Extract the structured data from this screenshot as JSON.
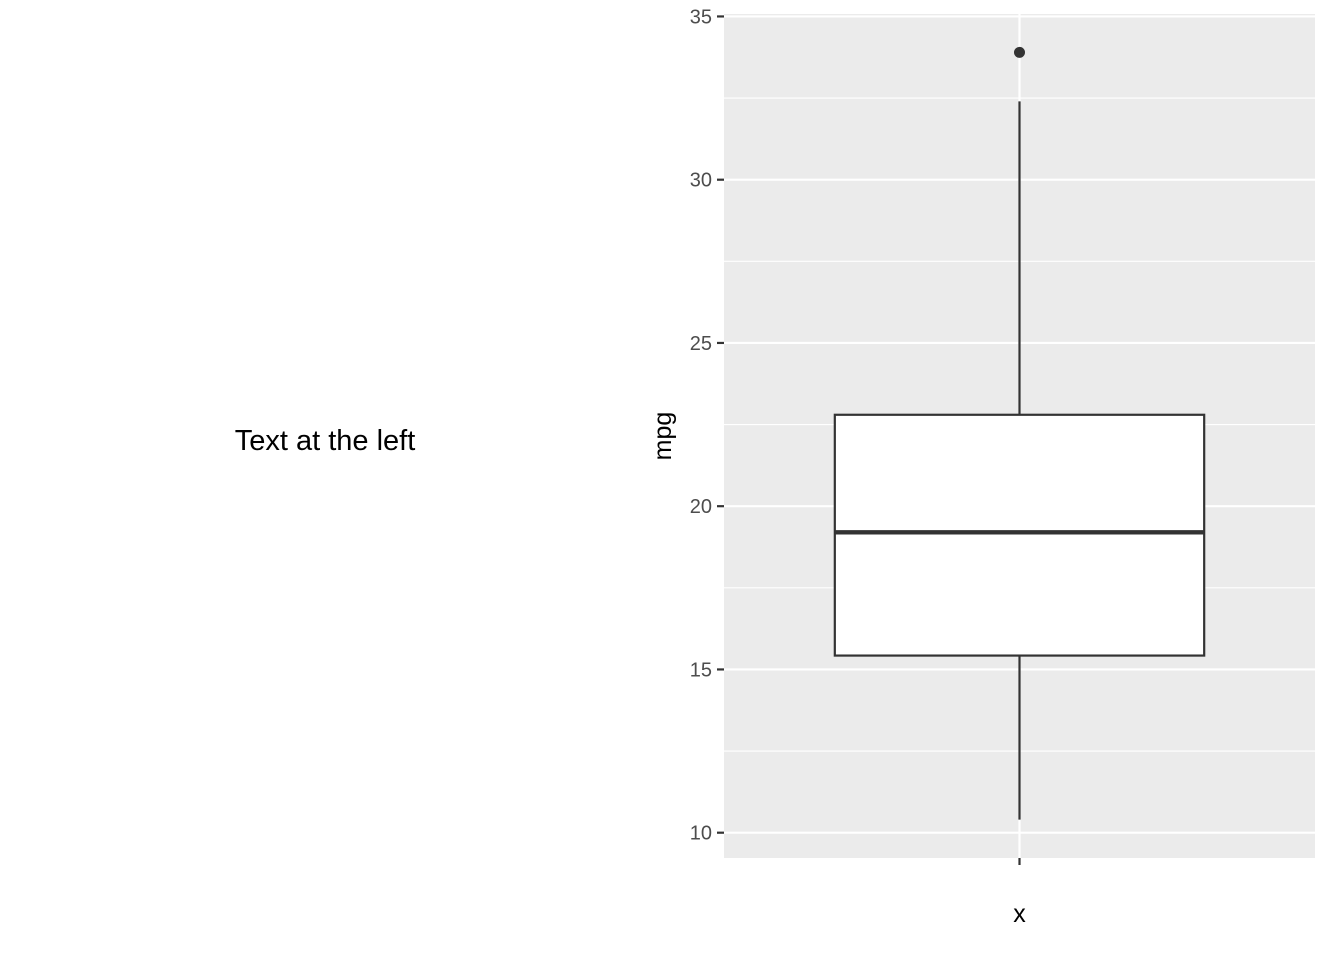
{
  "left_text": "Text at the left",
  "colors": {
    "panel": "#ebebeb",
    "grid": "#ffffff",
    "box_line": "#333333",
    "box_fill": "#ffffff",
    "tick": "#333333"
  },
  "chart_data": {
    "type": "boxplot",
    "xlabel": "x",
    "ylabel": "mpg",
    "ylim": [
      9.225,
      35.075
    ],
    "yticks": [
      10,
      15,
      20,
      25,
      30,
      35
    ],
    "x_tick_labels": [
      ""
    ],
    "grid": true,
    "boxes": [
      {
        "min": 10.4,
        "q1": 15.425,
        "median": 19.2,
        "q3": 22.8,
        "max": 32.4,
        "outliers": [
          33.9
        ]
      }
    ]
  }
}
